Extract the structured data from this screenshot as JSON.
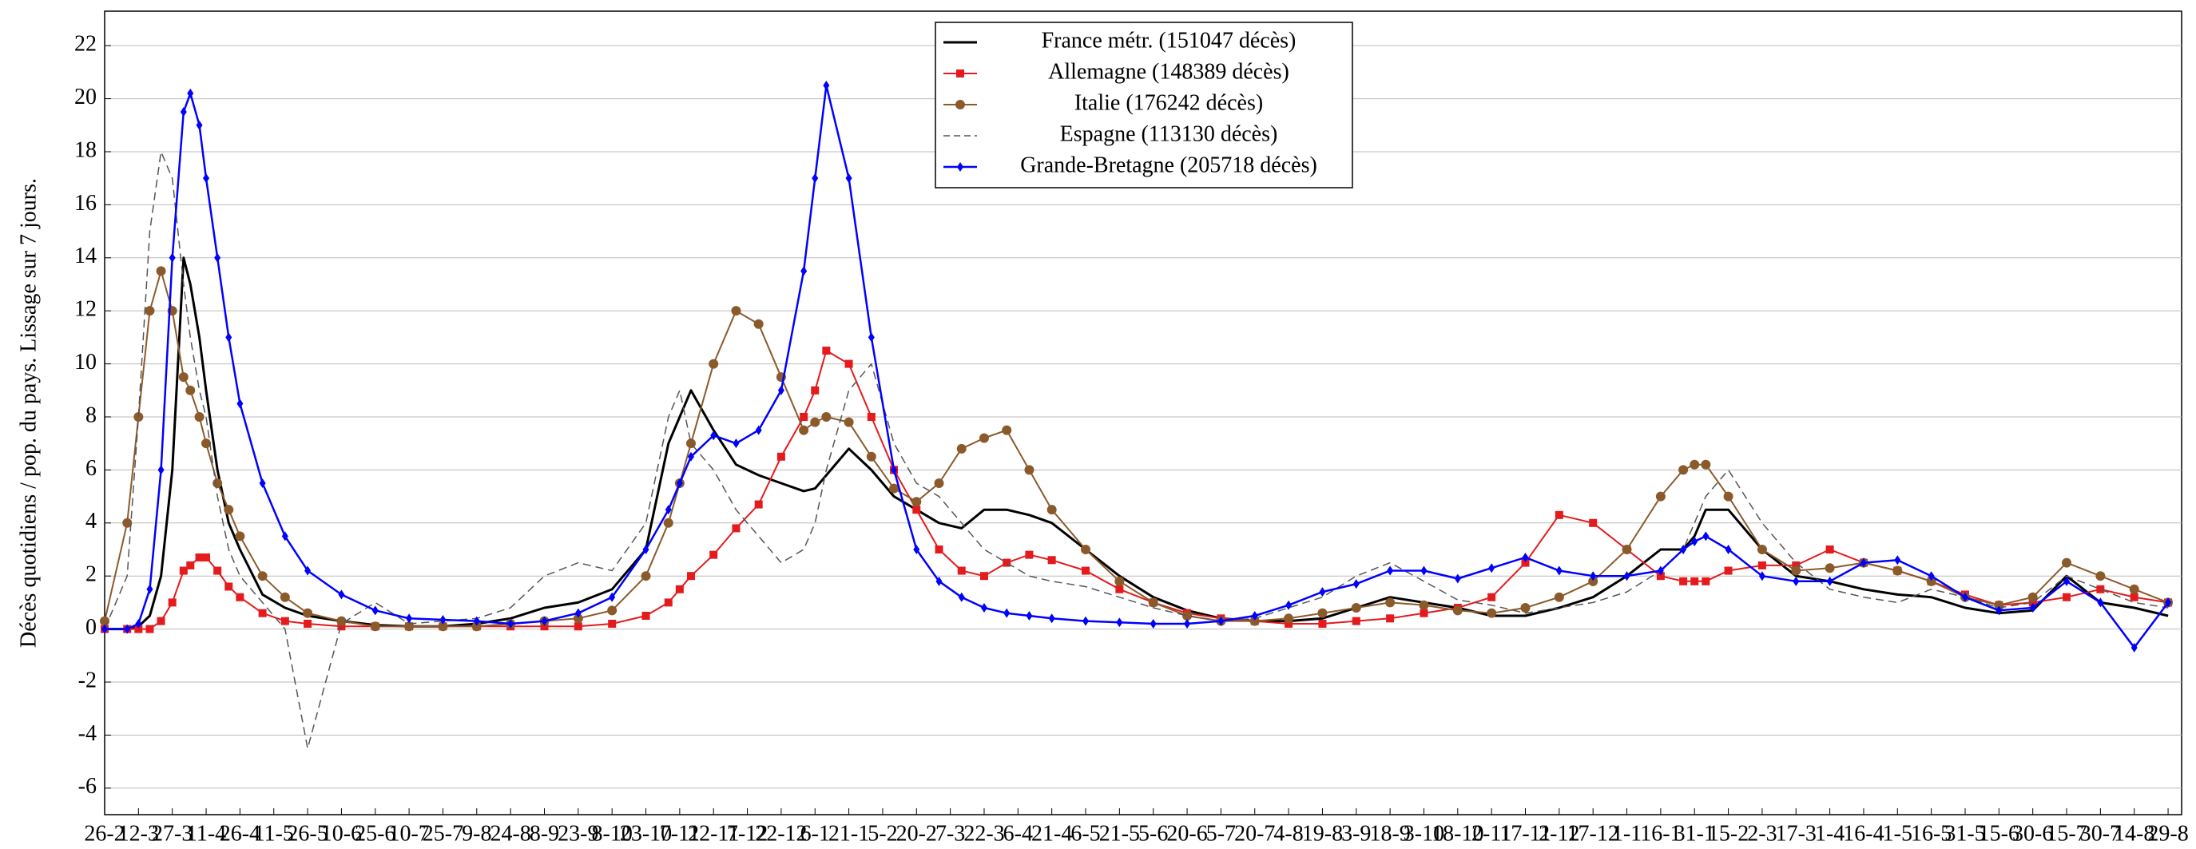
{
  "chart_data": {
    "type": "line",
    "y_label": "Décès quotidiens / pop. du pays. Lissage sur 7 jours.",
    "xlim": [
      0,
      921
    ],
    "ylim": [
      -7,
      23.3
    ],
    "yticks": [
      -6,
      -4,
      -2,
      0,
      2,
      4,
      6,
      8,
      10,
      12,
      14,
      16,
      18,
      20,
      22
    ],
    "xticks": [
      {
        "value": 0,
        "label": "26-2"
      },
      {
        "value": 15,
        "label": "12-3"
      },
      {
        "value": 30,
        "label": "27-3"
      },
      {
        "value": 45,
        "label": "11-4"
      },
      {
        "value": 60,
        "label": "26-4"
      },
      {
        "value": 75,
        "label": "11-5"
      },
      {
        "value": 90,
        "label": "26-5"
      },
      {
        "value": 105,
        "label": "10-6"
      },
      {
        "value": 120,
        "label": "25-6"
      },
      {
        "value": 135,
        "label": "10-7"
      },
      {
        "value": 150,
        "label": "25-7"
      },
      {
        "value": 165,
        "label": "9-8"
      },
      {
        "value": 180,
        "label": "24-8"
      },
      {
        "value": 195,
        "label": "8-9"
      },
      {
        "value": 210,
        "label": "23-9"
      },
      {
        "value": 225,
        "label": "8-10"
      },
      {
        "value": 240,
        "label": "23-10"
      },
      {
        "value": 255,
        "label": "7-11"
      },
      {
        "value": 270,
        "label": "22-11"
      },
      {
        "value": 285,
        "label": "7-12"
      },
      {
        "value": 300,
        "label": "22-12"
      },
      {
        "value": 315,
        "label": "6-1"
      },
      {
        "value": 330,
        "label": "21-1"
      },
      {
        "value": 345,
        "label": "5-2"
      },
      {
        "value": 360,
        "label": "20-2"
      },
      {
        "value": 375,
        "label": "7-3"
      },
      {
        "value": 390,
        "label": "22-3"
      },
      {
        "value": 405,
        "label": "6-4"
      },
      {
        "value": 420,
        "label": "21-4"
      },
      {
        "value": 435,
        "label": "6-5"
      },
      {
        "value": 450,
        "label": "21-5"
      },
      {
        "value": 465,
        "label": "5-6"
      },
      {
        "value": 480,
        "label": "20-6"
      },
      {
        "value": 495,
        "label": "5-7"
      },
      {
        "value": 510,
        "label": "20-7"
      },
      {
        "value": 525,
        "label": "4-8"
      },
      {
        "value": 540,
        "label": "19-8"
      },
      {
        "value": 555,
        "label": "3-9"
      },
      {
        "value": 570,
        "label": "18-9"
      },
      {
        "value": 585,
        "label": "3-10"
      },
      {
        "value": 600,
        "label": "18-10"
      },
      {
        "value": 615,
        "label": "2-11"
      },
      {
        "value": 630,
        "label": "17-11"
      },
      {
        "value": 645,
        "label": "2-12"
      },
      {
        "value": 660,
        "label": "17-12"
      },
      {
        "value": 675,
        "label": "1-1"
      },
      {
        "value": 690,
        "label": "16-1"
      },
      {
        "value": 705,
        "label": "31-1"
      },
      {
        "value": 720,
        "label": "15-2"
      },
      {
        "value": 735,
        "label": "2-3"
      },
      {
        "value": 750,
        "label": "17-3"
      },
      {
        "value": 765,
        "label": "1-4"
      },
      {
        "value": 780,
        "label": "16-4"
      },
      {
        "value": 795,
        "label": "1-5"
      },
      {
        "value": 810,
        "label": "16-5"
      },
      {
        "value": 825,
        "label": "31-5"
      },
      {
        "value": 840,
        "label": "15-6"
      },
      {
        "value": 855,
        "label": "30-6"
      },
      {
        "value": 870,
        "label": "15-7"
      },
      {
        "value": 885,
        "label": "30-7"
      },
      {
        "value": 900,
        "label": "14-8"
      },
      {
        "value": 915,
        "label": "29-8"
      }
    ],
    "grid": true,
    "x": [
      0,
      10,
      15,
      20,
      25,
      30,
      35,
      38,
      42,
      45,
      50,
      55,
      60,
      70,
      80,
      90,
      105,
      120,
      135,
      150,
      165,
      180,
      195,
      210,
      225,
      240,
      250,
      255,
      260,
      270,
      280,
      290,
      300,
      310,
      315,
      320,
      330,
      340,
      350,
      360,
      370,
      380,
      390,
      400,
      410,
      420,
      435,
      450,
      465,
      480,
      495,
      510,
      525,
      540,
      555,
      570,
      585,
      600,
      615,
      630,
      645,
      660,
      675,
      690,
      700,
      705,
      710,
      720,
      735,
      750,
      765,
      780,
      795,
      810,
      825,
      840,
      855,
      870,
      885,
      900,
      915
    ],
    "series": [
      {
        "name": "France métr. (151047 décès)",
        "color": "#000000",
        "marker": null,
        "dashed": false,
        "width": 3,
        "values": [
          0,
          0,
          0.1,
          0.5,
          2,
          6,
          14,
          13,
          11,
          9,
          6,
          4,
          3,
          1.3,
          0.8,
          0.5,
          0.3,
          0.15,
          0.1,
          0.1,
          0.2,
          0.4,
          0.8,
          1,
          1.5,
          3,
          7,
          8,
          9,
          7.5,
          6.2,
          5.8,
          5.5,
          5.2,
          5.3,
          5.8,
          6.8,
          6,
          5,
          4.5,
          4,
          3.8,
          4.5,
          4.5,
          4.3,
          4,
          3,
          2,
          1.2,
          0.7,
          0.4,
          0.3,
          0.3,
          0.4,
          0.8,
          1.2,
          1,
          0.8,
          0.5,
          0.5,
          0.8,
          1.2,
          2,
          3,
          3,
          3.5,
          4.5,
          4.5,
          3,
          2,
          1.8,
          1.5,
          1.3,
          1.2,
          0.8,
          0.6,
          0.7,
          2,
          1,
          0.8,
          0.5
        ]
      },
      {
        "name": "Allemagne (148389 décès)",
        "color": "#e41a1c",
        "marker": "square",
        "dashed": false,
        "width": 2,
        "values": [
          0,
          0,
          0,
          0,
          0.3,
          1,
          2.2,
          2.4,
          2.7,
          2.7,
          2.2,
          1.6,
          1.2,
          0.6,
          0.3,
          0.2,
          0.1,
          0.1,
          0.1,
          0.1,
          0.1,
          0.1,
          0.1,
          0.1,
          0.2,
          0.5,
          1,
          1.5,
          2,
          2.8,
          3.8,
          4.7,
          6.5,
          8,
          9,
          10.5,
          10,
          8,
          6,
          4.5,
          3,
          2.2,
          2,
          2.5,
          2.8,
          2.6,
          2.2,
          1.5,
          1,
          0.6,
          0.4,
          0.3,
          0.2,
          0.2,
          0.3,
          0.4,
          0.6,
          0.8,
          1.2,
          2.5,
          4.3,
          4,
          3,
          2,
          1.8,
          1.8,
          1.8,
          2.2,
          2.4,
          2.4,
          3,
          2.5,
          2.2,
          1.8,
          1.3,
          0.9,
          1,
          1.2,
          1.5,
          1.2,
          1
        ]
      },
      {
        "name": "Italie (176242 décès)",
        "color": "#8b5a2b",
        "marker": "circle",
        "dashed": false,
        "width": 2,
        "values": [
          0.3,
          4,
          8,
          12,
          13.5,
          12,
          9.5,
          9,
          8,
          7,
          5.5,
          4.5,
          3.5,
          2,
          1.2,
          0.6,
          0.3,
          0.1,
          0.1,
          0.1,
          0.1,
          0.2,
          0.3,
          0.4,
          0.7,
          2,
          4,
          5.5,
          7,
          10,
          12,
          11.5,
          9.5,
          7.5,
          7.8,
          8,
          7.8,
          6.5,
          5.3,
          4.8,
          5.5,
          6.8,
          7.2,
          7.5,
          6,
          4.5,
          3,
          1.8,
          1,
          0.5,
          0.3,
          0.3,
          0.4,
          0.6,
          0.8,
          1,
          0.9,
          0.7,
          0.6,
          0.8,
          1.2,
          1.8,
          3,
          5,
          6,
          6.2,
          6.2,
          5,
          3,
          2.2,
          2.3,
          2.5,
          2.2,
          1.8,
          1.2,
          0.9,
          1.2,
          2.5,
          2,
          1.5,
          1
        ]
      },
      {
        "name": "Espagne (113130 décès)",
        "color": "#555555",
        "marker": null,
        "dashed": true,
        "width": 1.5,
        "values": [
          0,
          2,
          8,
          15,
          18,
          17,
          13,
          11,
          9,
          8,
          5,
          3,
          2,
          1,
          0,
          -4.5,
          0.2,
          1,
          0.2,
          0.3,
          0.4,
          0.8,
          2,
          2.5,
          2.2,
          4,
          8,
          9,
          7,
          6,
          4.5,
          3.5,
          2.5,
          3,
          4,
          6,
          9,
          10,
          7,
          5.5,
          5,
          4,
          3,
          2.5,
          2,
          1.8,
          1.6,
          1.2,
          0.8,
          0.5,
          0.3,
          0.4,
          0.8,
          1.2,
          2,
          2.5,
          1.8,
          1.1,
          0.9,
          0.6,
          0.8,
          1,
          1.4,
          2.2,
          3,
          4,
          5,
          6,
          4,
          2.5,
          1.5,
          1.2,
          1,
          1.5,
          1.2,
          0.8,
          1,
          2,
          1.5,
          1,
          0.8
        ]
      },
      {
        "name": "Grande-Bretagne (205718 décès)",
        "color": "#0000ff",
        "marker": "diamond",
        "dashed": false,
        "width": 2.5,
        "values": [
          0,
          0,
          0.2,
          1.5,
          6,
          14,
          19.5,
          20.2,
          19,
          17,
          14,
          11,
          8.5,
          5.5,
          3.5,
          2.2,
          1.3,
          0.7,
          0.4,
          0.35,
          0.3,
          0.2,
          0.3,
          0.6,
          1.2,
          3,
          4.5,
          5.5,
          6.5,
          7.3,
          7,
          7.5,
          9,
          13.5,
          17,
          20.5,
          17,
          11,
          6,
          3,
          1.8,
          1.2,
          0.8,
          0.6,
          0.5,
          0.4,
          0.3,
          0.25,
          0.2,
          0.2,
          0.3,
          0.5,
          0.9,
          1.4,
          1.7,
          2.2,
          2.2,
          1.9,
          2.3,
          2.7,
          2.2,
          2,
          2,
          2.2,
          3,
          3.3,
          3.5,
          3,
          2,
          1.8,
          1.8,
          2.5,
          2.6,
          2,
          1.2,
          0.7,
          0.8,
          1.8,
          1,
          -0.7,
          1
        ]
      }
    ]
  }
}
